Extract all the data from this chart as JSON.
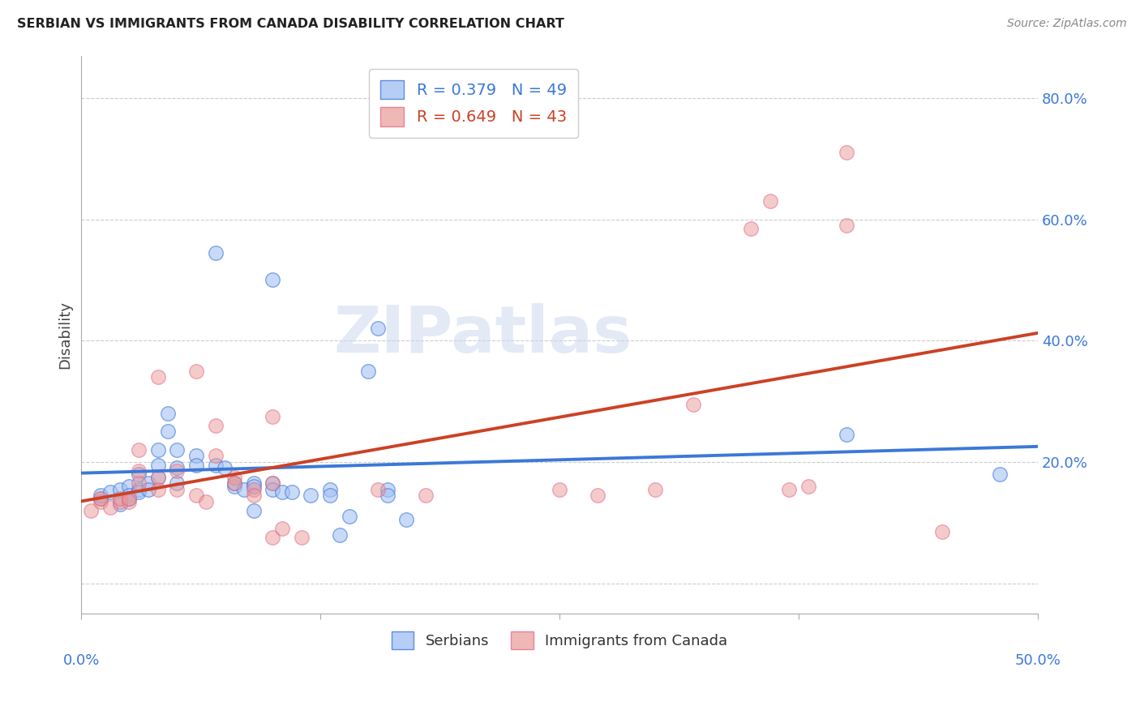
{
  "title": "SERBIAN VS IMMIGRANTS FROM CANADA DISABILITY CORRELATION CHART",
  "source": "Source: ZipAtlas.com",
  "ylabel": "Disability",
  "ytick_vals": [
    0.0,
    20.0,
    40.0,
    60.0,
    80.0
  ],
  "ytick_labels": [
    "",
    "20.0%",
    "40.0%",
    "60.0%",
    "80.0%"
  ],
  "xlim": [
    0.0,
    50.0
  ],
  "ylim": [
    -5.0,
    87.0
  ],
  "watermark_text": "ZIPatlas",
  "blue_color": "#a4c2f4",
  "pink_color": "#ea9999",
  "blue_line_color": "#3c78d8",
  "pink_line_color": "#cc4125",
  "blue_points": [
    [
      1.0,
      14.0
    ],
    [
      1.0,
      14.5
    ],
    [
      1.5,
      15.0
    ],
    [
      2.0,
      13.0
    ],
    [
      2.0,
      15.5
    ],
    [
      2.5,
      16.0
    ],
    [
      2.5,
      14.5
    ],
    [
      2.5,
      14.0
    ],
    [
      3.0,
      15.5
    ],
    [
      3.0,
      15.0
    ],
    [
      3.0,
      18.0
    ],
    [
      3.5,
      16.5
    ],
    [
      3.5,
      15.5
    ],
    [
      4.0,
      22.0
    ],
    [
      4.0,
      19.5
    ],
    [
      4.0,
      17.5
    ],
    [
      4.5,
      28.0
    ],
    [
      4.5,
      25.0
    ],
    [
      5.0,
      22.0
    ],
    [
      5.0,
      19.0
    ],
    [
      5.0,
      16.5
    ],
    [
      6.0,
      21.0
    ],
    [
      6.0,
      19.5
    ],
    [
      7.0,
      54.5
    ],
    [
      7.0,
      19.5
    ],
    [
      7.5,
      19.0
    ],
    [
      8.0,
      16.0
    ],
    [
      8.0,
      16.5
    ],
    [
      8.5,
      15.5
    ],
    [
      9.0,
      16.5
    ],
    [
      9.0,
      16.0
    ],
    [
      9.0,
      12.0
    ],
    [
      10.0,
      50.0
    ],
    [
      10.0,
      16.5
    ],
    [
      10.0,
      15.5
    ],
    [
      10.5,
      15.0
    ],
    [
      11.0,
      15.0
    ],
    [
      12.0,
      14.5
    ],
    [
      13.0,
      15.5
    ],
    [
      13.0,
      14.5
    ],
    [
      13.5,
      8.0
    ],
    [
      14.0,
      11.0
    ],
    [
      15.0,
      35.0
    ],
    [
      15.5,
      42.0
    ],
    [
      16.0,
      15.5
    ],
    [
      16.0,
      14.5
    ],
    [
      17.0,
      10.5
    ],
    [
      40.0,
      24.5
    ],
    [
      48.0,
      18.0
    ]
  ],
  "pink_points": [
    [
      0.5,
      12.0
    ],
    [
      1.0,
      13.5
    ],
    [
      1.0,
      14.0
    ],
    [
      1.5,
      12.5
    ],
    [
      2.0,
      13.5
    ],
    [
      2.0,
      14.0
    ],
    [
      2.5,
      13.5
    ],
    [
      2.5,
      14.0
    ],
    [
      3.0,
      22.0
    ],
    [
      3.0,
      18.5
    ],
    [
      3.0,
      16.5
    ],
    [
      4.0,
      34.0
    ],
    [
      4.0,
      17.5
    ],
    [
      4.0,
      15.5
    ],
    [
      5.0,
      18.5
    ],
    [
      5.0,
      15.5
    ],
    [
      6.0,
      35.0
    ],
    [
      6.0,
      14.5
    ],
    [
      6.5,
      13.5
    ],
    [
      7.0,
      26.0
    ],
    [
      7.0,
      21.0
    ],
    [
      8.0,
      17.5
    ],
    [
      8.0,
      16.5
    ],
    [
      9.0,
      15.5
    ],
    [
      9.0,
      14.5
    ],
    [
      10.0,
      27.5
    ],
    [
      10.0,
      16.5
    ],
    [
      10.0,
      7.5
    ],
    [
      10.5,
      9.0
    ],
    [
      11.5,
      7.5
    ],
    [
      15.5,
      15.5
    ],
    [
      18.0,
      14.5
    ],
    [
      25.0,
      15.5
    ],
    [
      27.0,
      14.5
    ],
    [
      30.0,
      15.5
    ],
    [
      32.0,
      29.5
    ],
    [
      35.0,
      58.5
    ],
    [
      36.0,
      63.0
    ],
    [
      37.0,
      15.5
    ],
    [
      38.0,
      16.0
    ],
    [
      40.0,
      71.0
    ],
    [
      40.0,
      59.0
    ],
    [
      45.0,
      8.5
    ]
  ],
  "grid_color": "#cccccc",
  "background_color": "#ffffff",
  "legend_1": "R = 0.379   N = 49",
  "legend_2": "R = 0.649   N = 43",
  "bottom_legend_1": "Serbians",
  "bottom_legend_2": "Immigrants from Canada"
}
